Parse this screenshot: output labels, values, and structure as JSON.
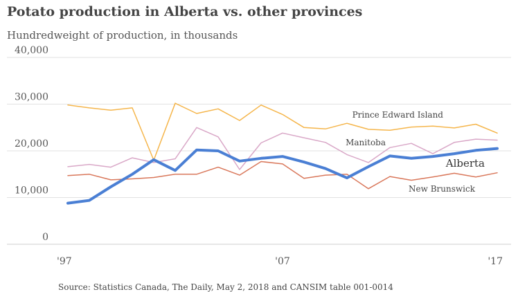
{
  "header": {
    "title": "Potato production in Alberta vs. other provinces",
    "subtitle": "Hundredweight of production, in thousands"
  },
  "footer": {
    "source": "Source: Statistics Canada, The Daily, May 2, 2018 and CANSIM table 001-0014"
  },
  "chart_data": {
    "type": "line",
    "title": "Potato production in Alberta vs. other provinces",
    "subtitle": "Hundredweight of production, in thousands",
    "x": [
      1997,
      1998,
      1999,
      2000,
      2001,
      2002,
      2003,
      2004,
      2005,
      2006,
      2007,
      2008,
      2009,
      2010,
      2011,
      2012,
      2013,
      2014,
      2015,
      2016,
      2017
    ],
    "x_tick_values": [
      1997,
      2007,
      2017
    ],
    "x_tick_labels": [
      "'97",
      "'07",
      "'17"
    ],
    "xlim": [
      1997,
      2017
    ],
    "ylim": [
      0,
      40000
    ],
    "y_ticks": [
      0,
      10000,
      20000,
      30000,
      40000
    ],
    "y_tick_labels": [
      "0",
      "10,000",
      "20,000",
      "30,000",
      "40,000"
    ],
    "grid": "horizontal",
    "legend": "direct labels at line ends",
    "series": [
      {
        "name": "Prince Edward Island",
        "color": "#F5B54A",
        "width": 1.5,
        "values": [
          29800,
          29200,
          28700,
          29200,
          18000,
          30200,
          28000,
          29000,
          26500,
          29800,
          27800,
          25000,
          24700,
          25900,
          24600,
          24400,
          25100,
          25300,
          24900,
          25700,
          23800
        ]
      },
      {
        "name": "Manitoba",
        "color": "#D9A7C7",
        "width": 1.5,
        "values": [
          16600,
          17100,
          16500,
          18500,
          17500,
          18300,
          25000,
          23000,
          16000,
          21700,
          23800,
          22800,
          21800,
          19200,
          17500,
          20700,
          21600,
          19400,
          21800,
          22500,
          22300
        ]
      },
      {
        "name": "New Brunswick",
        "color": "#D9775A",
        "width": 1.5,
        "values": [
          14700,
          15000,
          13800,
          14000,
          14300,
          15000,
          15000,
          16500,
          14800,
          17700,
          17200,
          14100,
          14800,
          15000,
          11900,
          14500,
          13700,
          14400,
          15200,
          14400,
          15300
        ]
      },
      {
        "name": "Alberta",
        "color": "#4A7FD4",
        "width": 4,
        "highlight": true,
        "values": [
          8800,
          9400,
          12300,
          15000,
          18100,
          15800,
          20200,
          20000,
          17800,
          18400,
          18800,
          17600,
          16200,
          14200,
          16600,
          18900,
          18400,
          18800,
          19400,
          20100,
          20500
        ]
      }
    ],
    "label_positions": [
      "Prince Edward Island",
      "Manitoba",
      "Alberta",
      "New Brunswick"
    ]
  }
}
